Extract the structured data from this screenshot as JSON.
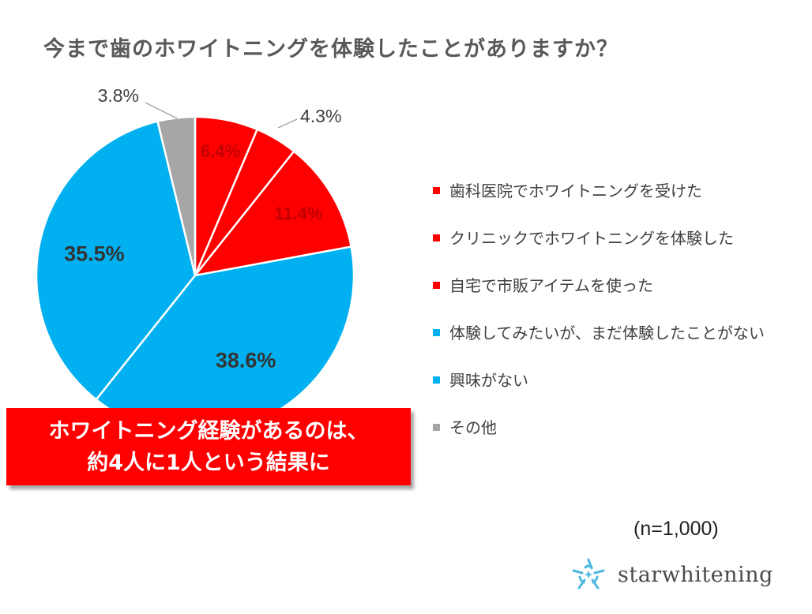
{
  "title": "今まで歯のホワイトニングを体験したことがありますか？",
  "chart_data": {
    "type": "pie",
    "title": "今まで歯のホワイトニングを体験したことがありますか？",
    "unit": "%",
    "slices": [
      {
        "label": "歯科医院でホワイトニングを受けた",
        "value": 6.4,
        "display": "6.4%",
        "color": "#ff0000"
      },
      {
        "label": "クリニックでホワイトニングを体験した",
        "value": 4.3,
        "display": "4.3%",
        "color": "#ff0000"
      },
      {
        "label": "自宅で市販アイテムを使った",
        "value": 11.4,
        "display": "11.4%",
        "color": "#ff0000"
      },
      {
        "label": "体験してみたいが、まだ体験したことがない",
        "value": 38.6,
        "display": "38.6%",
        "color": "#00b0f0"
      },
      {
        "label": "興味がない",
        "value": 35.5,
        "display": "35.5%",
        "color": "#00b0f0"
      },
      {
        "label": "その他",
        "value": 3.8,
        "display": "3.8%",
        "color": "#a6a6a6"
      }
    ],
    "legend_position": "right"
  },
  "callout": {
    "line1": "ホワイトニング経験があるのは、",
    "line2": "約4人に1人という結果に"
  },
  "sample_size": "(n=1,000)",
  "brand": {
    "name": "starwhitening",
    "icon": "star-logo-icon",
    "color": "#4fb8e0"
  }
}
